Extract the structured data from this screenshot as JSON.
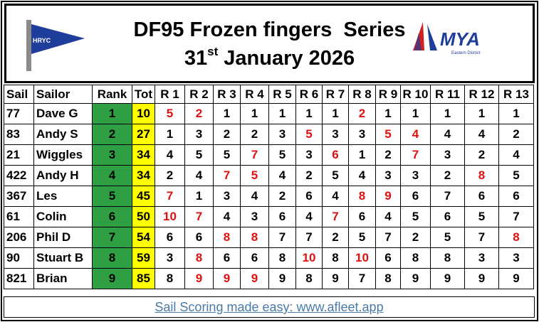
{
  "header": {
    "title": "DF95 Frozen fingers  Series",
    "date": {
      "day": "31",
      "suffix": "st",
      "rest": "January 2026"
    },
    "club_logo": "HRYC",
    "mya_logo": {
      "name": "MYA",
      "region": "Eastern District"
    }
  },
  "table": {
    "columns": [
      "Sail",
      "Sailor",
      "Rank",
      "Tot",
      "R 1",
      "R 2",
      "R 3",
      "R 4",
      "R 5",
      "R 6",
      "R 7",
      "R 8",
      "R 9",
      "R 10",
      "R 11",
      "R 12",
      "R 13"
    ],
    "rank_color": "#2ea043",
    "total_color": "#ffff00",
    "discard_color": "#e01010",
    "rows": [
      {
        "sail": 77,
        "sailor": "Dave G",
        "rank": 1,
        "total": 10,
        "results": [
          5,
          2,
          1,
          1,
          1,
          1,
          1,
          2,
          1,
          1,
          1,
          1,
          1
        ],
        "discards": [
          0,
          1,
          7
        ]
      },
      {
        "sail": 83,
        "sailor": "Andy S",
        "rank": 2,
        "total": 27,
        "results": [
          1,
          3,
          2,
          2,
          3,
          5,
          3,
          3,
          5,
          4,
          4,
          4,
          2
        ],
        "discards": [
          5,
          8,
          9
        ]
      },
      {
        "sail": 21,
        "sailor": "Wiggles",
        "rank": 3,
        "total": 34,
        "results": [
          4,
          5,
          5,
          7,
          5,
          3,
          6,
          1,
          2,
          7,
          3,
          2,
          4
        ],
        "discards": [
          3,
          6,
          9
        ]
      },
      {
        "sail": 422,
        "sailor": "Andy H",
        "rank": 4,
        "total": 34,
        "results": [
          2,
          4,
          7,
          5,
          4,
          2,
          5,
          4,
          3,
          3,
          2,
          8,
          5
        ],
        "discards": [
          2,
          3,
          11
        ]
      },
      {
        "sail": 367,
        "sailor": "Les",
        "rank": 5,
        "total": 45,
        "results": [
          7,
          1,
          3,
          4,
          2,
          6,
          4,
          8,
          9,
          6,
          7,
          6,
          6
        ],
        "discards": [
          0,
          7,
          8
        ]
      },
      {
        "sail": 61,
        "sailor": "Colin",
        "rank": 6,
        "total": 50,
        "results": [
          10,
          7,
          4,
          3,
          6,
          4,
          7,
          6,
          4,
          5,
          6,
          5,
          7
        ],
        "discards": [
          0,
          1,
          6
        ]
      },
      {
        "sail": 206,
        "sailor": "Phil D",
        "rank": 7,
        "total": 54,
        "results": [
          6,
          6,
          8,
          8,
          7,
          7,
          2,
          5,
          7,
          2,
          5,
          7,
          8
        ],
        "discards": [
          2,
          3,
          12
        ]
      },
      {
        "sail": 90,
        "sailor": "Stuart B",
        "rank": 8,
        "total": 59,
        "results": [
          3,
          8,
          6,
          6,
          8,
          10,
          8,
          10,
          6,
          8,
          8,
          3,
          3
        ],
        "discards": [
          1,
          5,
          7
        ]
      },
      {
        "sail": 821,
        "sailor": "Brian",
        "rank": 9,
        "total": 85,
        "results": [
          8,
          9,
          9,
          9,
          9,
          8,
          9,
          7,
          8,
          9,
          9,
          9,
          9
        ],
        "discards": [
          1,
          2,
          3
        ]
      }
    ]
  },
  "footer": {
    "link": "Sail Scoring made easy: www.afleet.app"
  }
}
